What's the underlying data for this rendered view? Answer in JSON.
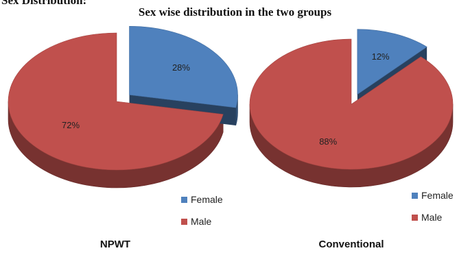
{
  "page_heading": "Sex Distribution:",
  "chart_data": {
    "type": "pie",
    "title": "Sex wise distribution in the two groups",
    "colors": {
      "Female": "#4f81bd",
      "Male": "#c0504d"
    },
    "charts": [
      {
        "group": "NPWT",
        "categories": [
          "Female",
          "Male"
        ],
        "values": [
          28,
          72
        ],
        "labels": [
          "28%",
          "72%"
        ],
        "exploded": "Female"
      },
      {
        "group": "Conventional",
        "categories": [
          "Female",
          "Male"
        ],
        "values": [
          12,
          88
        ],
        "labels": [
          "12%",
          "88%"
        ],
        "exploded": "Female"
      }
    ],
    "legend": [
      "Female",
      "Male"
    ],
    "style": "3d-exploded"
  }
}
